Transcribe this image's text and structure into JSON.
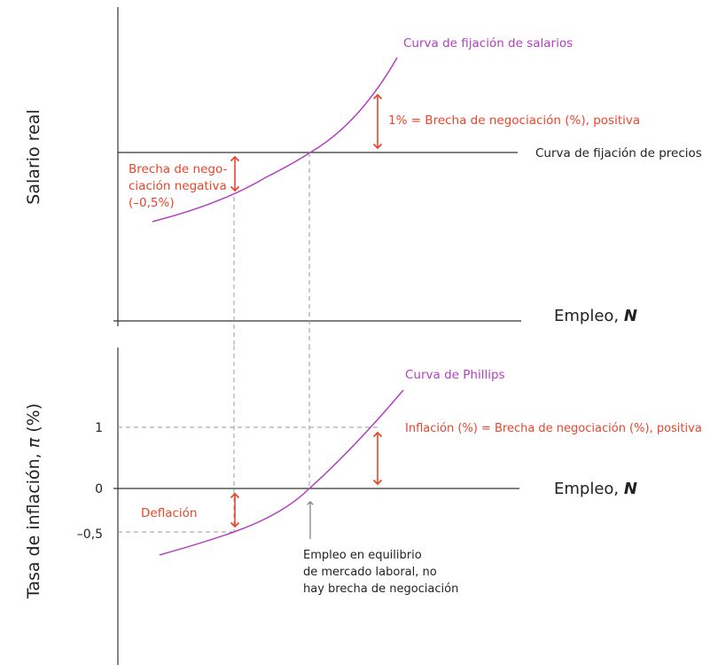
{
  "colors": {
    "axis": "#333333",
    "curve": "#b23fc0",
    "annotation": "#e8452c",
    "dashed": "#9a9a9a",
    "text": "#222222"
  },
  "top_panel": {
    "ylabel": "Salario real",
    "xlabel_prefix": "Empleo, ",
    "xlabel_var": "N",
    "wage_curve_label": "Curva de fijación de salarios",
    "price_curve_label": "Curva de fijación de precios",
    "positive_gap_label": "1% = Brecha de negociación (%), positiva",
    "negative_gap_line1": "Brecha de nego-",
    "negative_gap_line2": "ciación negativa",
    "negative_gap_line3": "(–0,5%)"
  },
  "bottom_panel": {
    "ylabel_prefix": "Tasa de inflación, ",
    "ylabel_var": "π",
    "ylabel_suffix": " (%)",
    "xlabel_prefix": "Empleo, ",
    "xlabel_var": "N",
    "phillips_label": "Curva de Phillips",
    "inflation_label": "Inflación (%) = Brecha de negociación (%), positiva",
    "deflation_label": "Deflación",
    "tick_1": "1",
    "tick_0": "0",
    "tick_neg": "–0,5",
    "equilibrium_line1": "Empleo en equilibrio",
    "equilibrium_line2": "de mercado laboral, no",
    "equilibrium_line3": "hay brecha de negociación"
  }
}
